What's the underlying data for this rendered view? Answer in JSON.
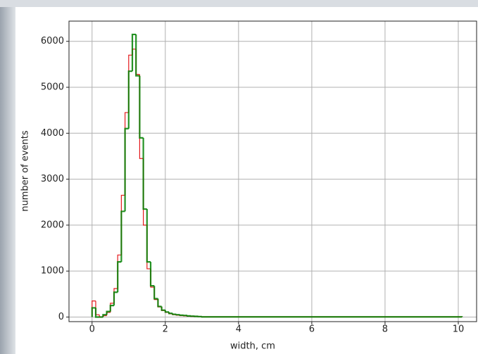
{
  "chart_data": {
    "type": "histogram",
    "xlabel": "width, cm",
    "ylabel": "number of events",
    "bins": [
      0,
      0.1,
      0.2,
      0.3,
      0.4,
      0.5,
      0.6,
      0.7,
      0.8,
      0.9,
      1.0,
      1.1,
      1.2,
      1.3,
      1.4,
      1.5,
      1.6,
      1.7,
      1.8,
      1.9,
      2.0,
      2.1,
      2.2,
      2.3,
      2.4,
      2.5,
      2.6,
      2.7,
      2.8,
      2.9,
      3.0,
      10.1
    ],
    "series": [
      {
        "color": "#e41a1c",
        "values": [
          350,
          50,
          0,
          30,
          100,
          300,
          620,
          1350,
          2650,
          4450,
          5700,
          5830,
          5280,
          3450,
          2000,
          1050,
          650,
          380,
          220,
          140,
          100,
          70,
          50,
          40,
          30,
          25,
          20,
          15,
          10,
          8,
          3
        ]
      },
      {
        "color": "#008000",
        "values": [
          200,
          0,
          0,
          50,
          120,
          250,
          540,
          1200,
          2300,
          4100,
          5350,
          6150,
          5250,
          3900,
          2350,
          1200,
          680,
          400,
          230,
          150,
          110,
          80,
          60,
          50,
          40,
          35,
          25,
          20,
          15,
          10,
          3
        ]
      }
    ],
    "xlim": [
      -0.63,
      10.5
    ],
    "ylim": [
      -100,
      6440
    ],
    "xticks": [
      0,
      2,
      4,
      6,
      8,
      10
    ],
    "yticks": [
      0,
      1000,
      2000,
      3000,
      4000,
      5000,
      6000
    ],
    "grid": true
  }
}
